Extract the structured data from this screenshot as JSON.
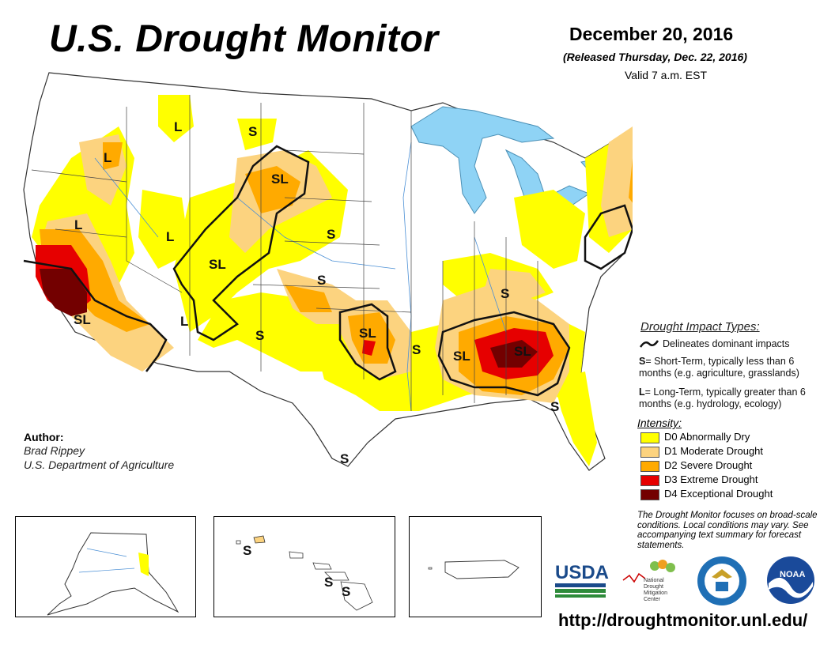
{
  "header": {
    "title": "U.S. Drought Monitor",
    "date": "December 20, 2016",
    "released": "(Released Thursday, Dec. 22, 2016)",
    "valid": "Valid 7 a.m. EST"
  },
  "impact_types": {
    "title": "Drought Impact Types:",
    "delineates": "Delineates dominant impacts",
    "short_term_key": "S",
    "short_term_text": "= Short-Term, typically less than 6 months (e.g. agriculture, grasslands)",
    "long_term_key": "L",
    "long_term_text": "= Long-Term, typically greater than 6 months (e.g. hydrology, ecology)"
  },
  "intensity": {
    "title": "Intensity:",
    "levels": [
      {
        "label": "D0 Abnormally Dry",
        "color": "#ffff00"
      },
      {
        "label": "D1 Moderate Drought",
        "color": "#fcd37f"
      },
      {
        "label": "D2 Severe Drought",
        "color": "#ffaa00"
      },
      {
        "label": "D3 Extreme Drought",
        "color": "#e60000"
      },
      {
        "label": "D4 Exceptional Drought",
        "color": "#730000"
      }
    ]
  },
  "author": {
    "label": "Author:",
    "name": "Brad Rippey",
    "org": "U.S. Department of Agriculture"
  },
  "note": "The Drought Monitor focuses on broad-scale conditions. Local conditions may vary. See accompanying text summary for forecast statements.",
  "url": "http://droughtmonitor.unl.edu/",
  "map_labels": {
    "L": "L",
    "S": "S",
    "SL": "SL"
  },
  "logos": {
    "usda": "USDA",
    "ndmc_line1": "National",
    "ndmc_line2": "Drought",
    "ndmc_line3": "Mitigation",
    "ndmc_line4": "Center",
    "noaa": "NOAA"
  },
  "colors": {
    "water": "#8fd3f5",
    "border": "#000000",
    "state_line": "#333333"
  }
}
